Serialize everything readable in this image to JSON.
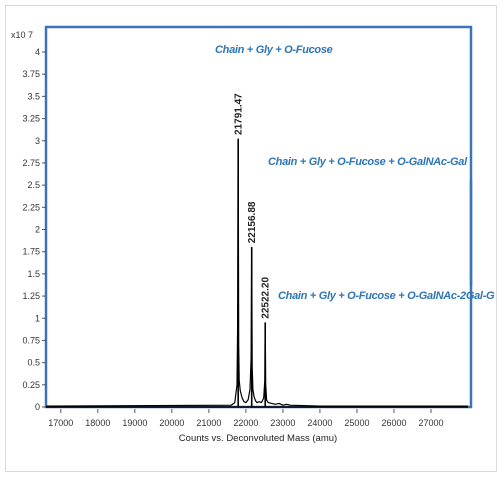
{
  "chart_data": {
    "type": "line",
    "multiplier": "x10 7",
    "xlabel": "Counts vs. Deconvoluted Mass (amu)",
    "ylabel": "",
    "xlim": [
      16600,
      28000
    ],
    "ylim": [
      0,
      4.1
    ],
    "x_ticks": [
      17000,
      18000,
      19000,
      20000,
      21000,
      22000,
      23000,
      24000,
      25000,
      26000,
      27000
    ],
    "y_ticks": [
      0,
      0.25,
      0.5,
      0.75,
      1,
      1.25,
      1.5,
      1.75,
      2,
      2.25,
      2.5,
      2.75,
      3,
      3.25,
      3.5,
      3.75,
      4
    ],
    "y_tick_labels": [
      "0",
      "0.25",
      "0.5",
      "0.75",
      "1",
      "1.25",
      "1.5",
      "1.75",
      "2",
      "2.25",
      "2.5",
      "2.75",
      "3",
      "3.25",
      "3.5",
      "3.75",
      "4"
    ],
    "grid": false,
    "peaks": [
      {
        "mass": 21791.47,
        "label": "21791.47",
        "intensity": 3.02
      },
      {
        "mass": 22156.88,
        "label": "22156.88",
        "intensity": 1.8
      },
      {
        "mass": 22522.2,
        "label": "22522.20",
        "intensity": 0.95
      }
    ],
    "series": [
      {
        "x": [
          16600,
          21600,
          21700,
          21760,
          21775,
          21791.47,
          21805,
          21820,
          21850,
          21900,
          21950,
          22000,
          22060,
          22110,
          22140,
          22156.88,
          22170,
          22190,
          22220,
          22260,
          22300,
          22360,
          22420,
          22480,
          22510,
          22522.2,
          22535,
          22560,
          22600,
          22700,
          22800,
          22900,
          23000,
          23100,
          23200,
          24000,
          28000
        ],
        "values": [
          0.01,
          0.02,
          0.05,
          0.25,
          0.9,
          3.02,
          0.7,
          0.3,
          0.18,
          0.1,
          0.06,
          0.05,
          0.08,
          0.2,
          0.55,
          1.8,
          0.45,
          0.2,
          0.12,
          0.07,
          0.05,
          0.06,
          0.05,
          0.1,
          0.3,
          0.95,
          0.25,
          0.08,
          0.05,
          0.04,
          0.03,
          0.04,
          0.02,
          0.03,
          0.02,
          0.01,
          0.01
        ],
        "color": "#000000"
      }
    ],
    "annotations": [
      {
        "text": "Chain + Gly + O-Fucose"
      },
      {
        "text": "Chain + Gly + O-Fucose + O-GalNAc-Gal"
      },
      {
        "text": "Chain + Gly + O-Fucose + O-GalNAc-2Gal-G"
      }
    ]
  },
  "colors": {
    "frame": "#3c74b8",
    "annotation_text": "#2e75b6",
    "trace": "#000000"
  }
}
